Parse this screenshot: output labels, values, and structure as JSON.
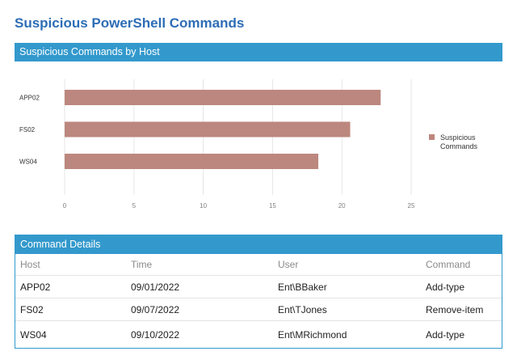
{
  "page": {
    "title": "Suspicious PowerShell Commands"
  },
  "chart_panel": {
    "header": "Suspicious Commands by Host"
  },
  "chart_data": {
    "type": "bar",
    "orientation": "horizontal",
    "categories": [
      "APP02",
      "FS02",
      "WS04"
    ],
    "series": [
      {
        "name": "Suspicious Commands",
        "values": [
          22.8,
          20.6,
          18.3
        ],
        "color": "#bc877e"
      }
    ],
    "xlim": [
      0,
      25
    ],
    "xticks": [
      "0",
      "5",
      "10",
      "15",
      "20",
      "25"
    ],
    "grid": "vertical",
    "legend": "right"
  },
  "table_panel": {
    "header": "Command Details",
    "columns": [
      "Host",
      "Time",
      "User",
      "Command"
    ],
    "rows": [
      [
        "APP02",
        "09/01/2022",
        "Ent\\BBaker",
        "Add-type"
      ],
      [
        "FS02",
        "09/07/2022",
        "Ent\\TJones",
        "Remove-item"
      ],
      [
        "WS04",
        "09/10/2022",
        "Ent\\MRichmond",
        "Add-type"
      ]
    ]
  }
}
